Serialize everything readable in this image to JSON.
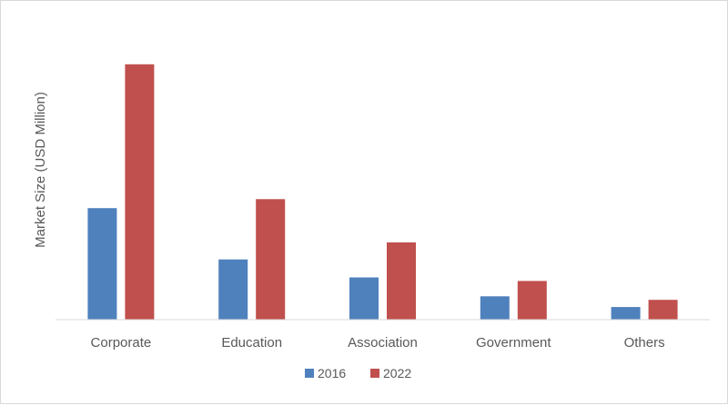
{
  "chart_data": {
    "type": "bar",
    "ylabel": "Market Size (USD Million)",
    "categories": [
      "Corporate",
      "Education",
      "Association",
      "Government",
      "Others"
    ],
    "series": [
      {
        "name": "2016",
        "color": "#4f81bd",
        "values": [
          124,
          67,
          47,
          26,
          14
        ]
      },
      {
        "name": "2022",
        "color": "#c0504d",
        "values": [
          284,
          134,
          86,
          43,
          22
        ]
      }
    ],
    "ylim": [
      0,
      300
    ],
    "grid": false,
    "legend_position": "bottom"
  }
}
